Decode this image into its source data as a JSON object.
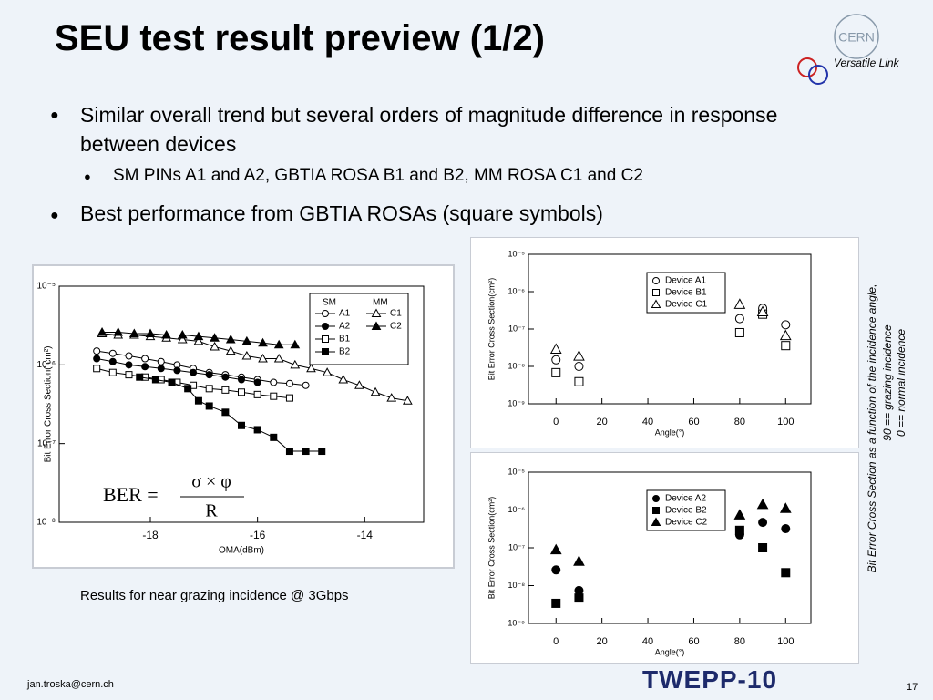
{
  "header": {
    "title": "SEU test result preview (1/2)",
    "logo": "CERN",
    "project": "Versatile Link"
  },
  "bullets": [
    "Similar overall trend but several orders of  magnitude difference in response between devices",
    "SM PINs A1 and A2, GBTIA ROSA B1 and B2, MM ROSA C1 and C2",
    "Best performance from GBTIA ROSAs (square symbols)"
  ],
  "caption": "Results for near grazing incidence @ 3Gbps",
  "side_note": [
    "Bit Error Cross Section  as a function of the incidence angle,",
    "90 == grazing incidence",
    "0 == normal incidence"
  ],
  "footer": {
    "email": "jan.troska@cern.ch",
    "event": "TWEPP-10",
    "page": "17"
  },
  "chart_data": [
    {
      "type": "line",
      "x_label": "OMA(dBm)",
      "y_label": "Bit Error Cross Section( cm²)",
      "ylog": true,
      "xlim": [
        -19.7,
        -12.9
      ],
      "xticks": [
        -18,
        -16,
        -14
      ],
      "ylim": [
        1e-08,
        1e-05
      ],
      "yticks": [
        {
          "value": 1e-08,
          "label": "10⁻⁸"
        },
        {
          "value": 1e-07,
          "label": "10⁻⁷"
        },
        {
          "value": 1e-06,
          "label": "10⁻⁶"
        },
        {
          "value": 1e-05,
          "label": "10⁻⁵"
        }
      ],
      "legend_titles": [
        "SM",
        "MM"
      ],
      "formula": {
        "lhs": "BER =",
        "numerator": "σ × φ",
        "denominator": "R"
      },
      "series": [
        {
          "name": "A1",
          "color": "#000000",
          "marker": "circle",
          "filled": false,
          "x": [
            -19.0,
            -18.7,
            -18.4,
            -18.1,
            -17.8,
            -17.5,
            -17.2,
            -16.9,
            -16.6,
            -16.3,
            -16.0,
            -15.7,
            -15.4,
            -15.1
          ],
          "values": [
            1.5e-06,
            1.4e-06,
            1.3e-06,
            1.2e-06,
            1.1e-06,
            1e-06,
            9e-07,
            8e-07,
            7.5e-07,
            7e-07,
            6.5e-07,
            6e-07,
            5.8e-07,
            5.5e-07
          ]
        },
        {
          "name": "A2",
          "color": "#000000",
          "marker": "circle",
          "filled": true,
          "x": [
            -19.0,
            -18.7,
            -18.4,
            -18.1,
            -17.8,
            -17.5,
            -17.2,
            -16.9,
            -16.6,
            -16.3,
            -16.0
          ],
          "values": [
            1.2e-06,
            1.1e-06,
            1e-06,
            9.5e-07,
            9e-07,
            8.5e-07,
            8e-07,
            7.5e-07,
            7e-07,
            6.5e-07,
            6e-07
          ]
        },
        {
          "name": "B1",
          "color": "#000000",
          "marker": "square",
          "filled": false,
          "x": [
            -19.0,
            -18.7,
            -18.4,
            -18.1,
            -17.8,
            -17.5,
            -17.2,
            -16.9,
            -16.6,
            -16.3,
            -16.0,
            -15.7,
            -15.4
          ],
          "values": [
            9e-07,
            8e-07,
            7.5e-07,
            7e-07,
            6.5e-07,
            6e-07,
            5.5e-07,
            5e-07,
            4.8e-07,
            4.5e-07,
            4.2e-07,
            4e-07,
            3.8e-07
          ]
        },
        {
          "name": "B2",
          "color": "#000000",
          "marker": "square",
          "filled": true,
          "x": [
            -18.2,
            -17.9,
            -17.6,
            -17.3,
            -17.1,
            -16.9,
            -16.6,
            -16.3,
            -16.0,
            -15.7,
            -15.4,
            -15.1,
            -14.8
          ],
          "values": [
            7e-07,
            6.5e-07,
            6e-07,
            5e-07,
            3.5e-07,
            3e-07,
            2.5e-07,
            1.7e-07,
            1.5e-07,
            1.2e-07,
            8e-08,
            8e-08,
            8e-08
          ]
        },
        {
          "name": "C1",
          "color": "#000000",
          "marker": "triangle",
          "filled": false,
          "x": [
            -18.9,
            -18.6,
            -18.3,
            -18.0,
            -17.7,
            -17.4,
            -17.1,
            -16.8,
            -16.5,
            -16.2,
            -15.9,
            -15.6,
            -15.3,
            -15.0,
            -14.7,
            -14.4,
            -14.1,
            -13.8,
            -13.5,
            -13.2
          ],
          "values": [
            2.5e-06,
            2.4e-06,
            2.4e-06,
            2.3e-06,
            2.2e-06,
            2.1e-06,
            2e-06,
            1.7e-06,
            1.5e-06,
            1.3e-06,
            1.2e-06,
            1.2e-06,
            1e-06,
            9e-07,
            8e-07,
            6.5e-07,
            5.5e-07,
            4.5e-07,
            3.8e-07,
            3.5e-07
          ]
        },
        {
          "name": "C2",
          "color": "#000000",
          "marker": "triangle",
          "filled": true,
          "x": [
            -18.9,
            -18.6,
            -18.3,
            -18.0,
            -17.7,
            -17.4,
            -17.1,
            -16.8,
            -16.5,
            -16.2,
            -15.9,
            -15.6,
            -15.3
          ],
          "values": [
            2.6e-06,
            2.6e-06,
            2.5e-06,
            2.5e-06,
            2.4e-06,
            2.4e-06,
            2.3e-06,
            2.2e-06,
            2.1e-06,
            2e-06,
            1.9e-06,
            1.8e-06,
            1.8e-06
          ]
        }
      ]
    },
    {
      "type": "scatter",
      "x_label": "Angle(°)",
      "y_label": "Bit Error Cross Section(cm²)",
      "ylog": true,
      "x": [
        0,
        10,
        80,
        90,
        100
      ],
      "xlim": [
        -12,
        111
      ],
      "xticks": [
        0,
        20,
        40,
        60,
        80,
        100
      ],
      "ylim": [
        1e-09,
        1e-05
      ],
      "yticks": [
        {
          "value": 1e-09,
          "label": "10⁻⁹"
        },
        {
          "value": 1e-08,
          "label": "10⁻⁸"
        },
        {
          "value": 1e-07,
          "label": "10⁻⁷"
        },
        {
          "value": 1e-06,
          "label": "10⁻⁶"
        },
        {
          "value": 1e-05,
          "label": "10⁻⁵"
        }
      ],
      "legend": "upper right",
      "series": [
        {
          "name": "Device A1",
          "color": "#000000",
          "marker": "circle",
          "filled": false,
          "values": [
            1.5e-08,
            1e-08,
            1.9e-07,
            3.6e-07,
            1.3e-07
          ]
        },
        {
          "name": "Device B1",
          "color": "#000000",
          "marker": "square",
          "filled": false,
          "values": [
            6.8e-09,
            3.9e-09,
            8e-08,
            2.5e-07,
            3.6e-08
          ]
        },
        {
          "name": "Device C1",
          "color": "#000000",
          "marker": "triangle",
          "filled": false,
          "values": [
            2.9e-08,
            1.9e-08,
            4.6e-07,
            2.9e-07,
            6.7e-08
          ]
        }
      ]
    },
    {
      "type": "scatter",
      "x_label": "Angle(°)",
      "y_label": "Bit Error Cross Section(cm²)",
      "ylog": true,
      "x": [
        0,
        10,
        80,
        90,
        100
      ],
      "xlim": [
        -12,
        111
      ],
      "xticks": [
        0,
        20,
        40,
        60,
        80,
        100
      ],
      "ylim": [
        1e-09,
        1e-05
      ],
      "yticks": [
        {
          "value": 1e-09,
          "label": "10⁻⁹"
        },
        {
          "value": 1e-08,
          "label": "10⁻⁸"
        },
        {
          "value": 1e-07,
          "label": "10⁻⁷"
        },
        {
          "value": 1e-06,
          "label": "10⁻⁶"
        },
        {
          "value": 1e-05,
          "label": "10⁻⁵"
        }
      ],
      "legend": "upper right",
      "series": [
        {
          "name": "Device A2",
          "color": "#000000",
          "marker": "circle",
          "filled": true,
          "values": [
            2.6e-08,
            7.4e-09,
            2.2e-07,
            4.7e-07,
            3.2e-07
          ]
        },
        {
          "name": "Device B2",
          "color": "#000000",
          "marker": "square",
          "filled": true,
          "values": [
            3.4e-09,
            4.7e-09,
            2.9e-07,
            1e-07,
            2.2e-08
          ]
        },
        {
          "name": "Device C2",
          "color": "#000000",
          "marker": "triangle",
          "filled": true,
          "values": [
            8.9e-08,
            4.4e-08,
            7.4e-07,
            1.4e-06,
            1.1e-06
          ]
        }
      ]
    }
  ]
}
